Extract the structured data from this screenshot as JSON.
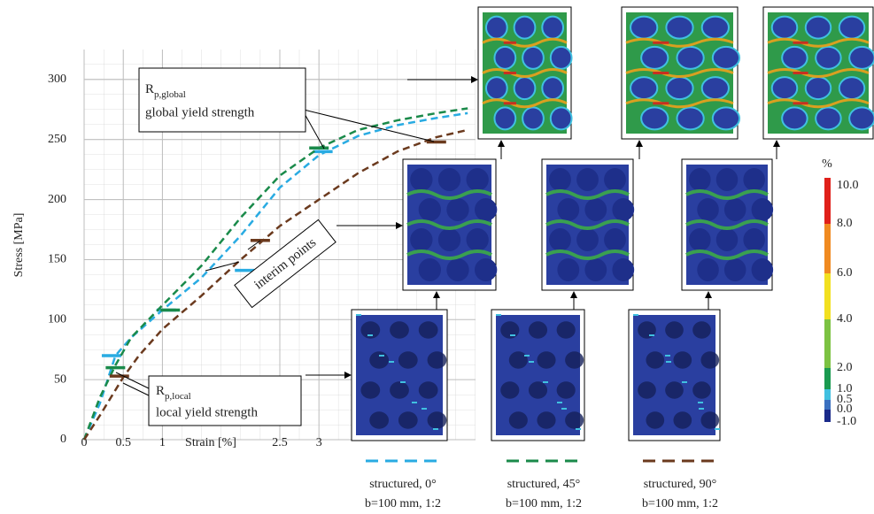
{
  "chart_data": {
    "type": "line",
    "x_label": "Strain [%]",
    "y_label": "Stress [MPa]",
    "xlim": [
      0,
      5
    ],
    "ylim": [
      0,
      325
    ],
    "xticks": [
      0,
      0.5,
      1,
      2.5,
      3
    ],
    "yticks": [
      0,
      50,
      100,
      150,
      200,
      250,
      300
    ],
    "grid": true,
    "series": [
      {
        "name": "structured, 0°",
        "detail": "b=100 mm, 1:2",
        "color": "#29abe2",
        "x": [
          0,
          0.2,
          0.4,
          0.6,
          1,
          1.5,
          2,
          2.5,
          3,
          3.5,
          4,
          4.5,
          4.9
        ],
        "values": [
          0,
          30,
          70,
          85,
          108,
          135,
          170,
          210,
          237,
          253,
          262,
          268,
          272
        ],
        "marker_x": [
          0.35,
          1.05,
          2.05,
          3.05
        ],
        "marker_values": [
          70,
          108,
          141,
          240
        ]
      },
      {
        "name": "structured, 45°",
        "detail": "b=100 mm, 1:2",
        "color": "#1a8a4a",
        "x": [
          0,
          0.2,
          0.4,
          0.6,
          1,
          1.5,
          2,
          2.5,
          3,
          3.5,
          4,
          4.5,
          4.9
        ],
        "values": [
          0,
          35,
          62,
          85,
          112,
          145,
          185,
          220,
          243,
          258,
          266,
          272,
          276
        ],
        "marker_x": [
          0.4,
          1.1,
          3.0
        ],
        "marker_values": [
          60,
          108,
          243
        ]
      },
      {
        "name": "structured, 90°",
        "detail": "b=100 mm, 1:2",
        "color": "#6b3a1e",
        "x": [
          0,
          0.2,
          0.5,
          0.7,
          1,
          1.5,
          2,
          2.5,
          3,
          3.5,
          4,
          4.5,
          4.9
        ],
        "values": [
          0,
          20,
          52,
          70,
          92,
          120,
          150,
          178,
          200,
          222,
          240,
          252,
          258
        ],
        "marker_x": [
          0.45,
          2.25,
          4.5
        ],
        "marker_values": [
          53,
          166,
          248
        ]
      }
    ],
    "annotations": [
      {
        "symbol": "R",
        "subscript": "p,global",
        "text": "global yield strength"
      },
      {
        "text": "interim points"
      },
      {
        "symbol": "R",
        "subscript": "p,local",
        "text": "local yield strength"
      }
    ],
    "colorbar": {
      "unit": "%",
      "ticks": [
        {
          "value": 10,
          "label": "10.0"
        },
        {
          "value": 8,
          "label": "8.0"
        },
        {
          "value": 6,
          "label": "6.0"
        },
        {
          "value": 4,
          "label": "4.0"
        },
        {
          "value": 2,
          "label": "2.0"
        },
        {
          "value": 1,
          "label": "1.0"
        },
        0.5,
        {
          "value": 0,
          "label": "0.0"
        },
        {
          "value": -1,
          "label": "-1.0"
        }
      ],
      "colors": [
        "#e0201a",
        "#f08a20",
        "#f2e020",
        "#7cc242",
        "#1a9a50",
        "#40c0e0",
        "#3a70c0",
        "#1a2a8a"
      ]
    }
  }
}
